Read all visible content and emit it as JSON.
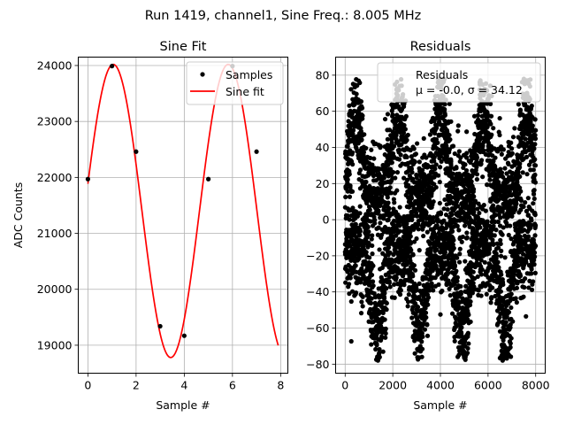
{
  "figure": {
    "suptitle": "Run 1419, channel1, Sine Freq.: 8.005 MHz"
  },
  "chart_data": [
    {
      "type": "line",
      "title": "Sine Fit",
      "xlabel": "Sample #",
      "ylabel": "ADC Counts",
      "xlim": [
        -0.4,
        8.3
      ],
      "ylim": [
        18500,
        24150
      ],
      "xticks": [
        0,
        2,
        4,
        6,
        8
      ],
      "yticks": [
        19000,
        20000,
        21000,
        22000,
        23000,
        24000
      ],
      "grid": true,
      "legend_position": "upper right",
      "series": [
        {
          "name": "Samples",
          "kind": "scatter",
          "color": "#000000",
          "x": [
            0,
            1,
            2,
            3,
            4,
            5,
            6,
            7
          ],
          "y": [
            21970,
            23990,
            22460,
            19340,
            19170,
            21970,
            23990,
            22460
          ]
        },
        {
          "name": "Sine fit",
          "kind": "line",
          "color": "#ff0000",
          "model": {
            "offset": 21400,
            "amplitude": 2620,
            "cycles_per_sample": 0.2095,
            "phase_rad": 0.1866
          },
          "x_range": [
            0,
            7.9
          ]
        }
      ]
    },
    {
      "type": "scatter",
      "title": "Residuals",
      "xlabel": "Sample #",
      "ylabel": "",
      "xlim": [
        -400,
        8400
      ],
      "ylim": [
        -85,
        90
      ],
      "xticks": [
        0,
        2000,
        4000,
        6000,
        8000
      ],
      "yticks": [
        -80,
        -60,
        -40,
        -20,
        0,
        20,
        40,
        60,
        80
      ],
      "grid": true,
      "legend_position": "upper right",
      "legend_lines": [
        "Residuals",
        "μ = -0.0, σ = 34.12"
      ],
      "series": [
        {
          "name": "Residuals",
          "color": "#000000",
          "n_points": 8000,
          "mean": -0.0,
          "std": 34.12
        }
      ]
    }
  ]
}
